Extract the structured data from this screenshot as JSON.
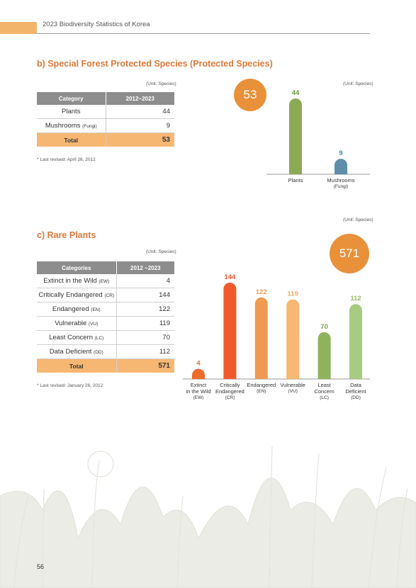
{
  "header": {
    "title": "2023 Biodiversity Statistics of Korea"
  },
  "section_b": {
    "title": "b) Special Forest Protected Species (Protected Species)",
    "unit": "(Unit: Species)",
    "chart_unit": "(Unit: Species)",
    "table": {
      "col1": "Category",
      "col2": "2012~2023",
      "rows": [
        {
          "label": "Plants",
          "sub": "",
          "value": "44"
        },
        {
          "label": "Mushrooms ",
          "sub": "(Fungi)",
          "value": "9"
        }
      ],
      "total_label": "Total",
      "total_value": "53"
    },
    "note": "* Last revised: April 26, 2012",
    "total_badge": "53"
  },
  "section_c": {
    "title": "c) Rare Plants",
    "unit": "(Unit: Species)",
    "chart_unit": "(Unit: Species)",
    "table": {
      "col1": "Categories",
      "col2": "2012 ~2023",
      "rows": [
        {
          "label": "Extinct in the Wild ",
          "sub": "(EW)",
          "value": "4"
        },
        {
          "label": "Critically Endangered ",
          "sub": "(CR)",
          "value": "144"
        },
        {
          "label": "Endangered ",
          "sub": "(EN)",
          "value": "122"
        },
        {
          "label": "Vulnerable ",
          "sub": "(VU)",
          "value": "119"
        },
        {
          "label": "Least Concern ",
          "sub": "(LC)",
          "value": "70"
        },
        {
          "label": "Data Deficient ",
          "sub": "(DD)",
          "value": "112"
        }
      ],
      "total_label": "Total",
      "total_value": "571"
    },
    "note": "* Last revised: January 26, 2012",
    "total_badge": "571"
  },
  "chart_data": [
    {
      "type": "bar",
      "categories": [
        "Plants",
        "Mushrooms (Fungi)"
      ],
      "values": [
        44,
        9
      ],
      "data_labels": [
        "44",
        "9"
      ],
      "colors": [
        "#8caa55",
        "#5f8ea8"
      ],
      "label_colors": [
        "#6e9a3c",
        "#4a86a6"
      ],
      "x_labels": [
        {
          "line1": "Plants",
          "line2": ""
        },
        {
          "line1": "Mushrooms",
          "line2": "(Fungi)"
        }
      ]
    },
    {
      "type": "bar",
      "categories": [
        "Extinct in the Wild (EW)",
        "Critically Endangered (CR)",
        "Endangered (EN)",
        "Vulnerable (VU)",
        "Least Concern (LC)",
        "Data Deficient (DD)"
      ],
      "values": [
        4,
        144,
        122,
        119,
        70,
        112
      ],
      "data_labels": [
        "4",
        "144",
        "122",
        "119",
        "70",
        "112"
      ],
      "colors": [
        "#ec6a2a",
        "#ef5a2c",
        "#ef9a52",
        "#f6b872",
        "#8fb35c",
        "#a7cb80"
      ],
      "label_colors": [
        "#ec6a2a",
        "#e8562a",
        "#ef9a52",
        "#f2aa62",
        "#7aa84a",
        "#8fbd65"
      ],
      "x_labels": [
        {
          "line1": "Extinct",
          "line2": "in the Wild",
          "line3": "(EW)"
        },
        {
          "line1": "Critically",
          "line2": "Endangered",
          "line3": "(CR)"
        },
        {
          "line1": "Endangered",
          "line2": "(EN)",
          "line3": ""
        },
        {
          "line1": "Vulnerable",
          "line2": "(VU)",
          "line3": ""
        },
        {
          "line1": "Least",
          "line2": "Concern",
          "line3": "(LC)"
        },
        {
          "line1": "Data",
          "line2": "Deficient",
          "line3": "(DD)"
        }
      ]
    }
  ],
  "footer": {
    "page_number": "56"
  }
}
